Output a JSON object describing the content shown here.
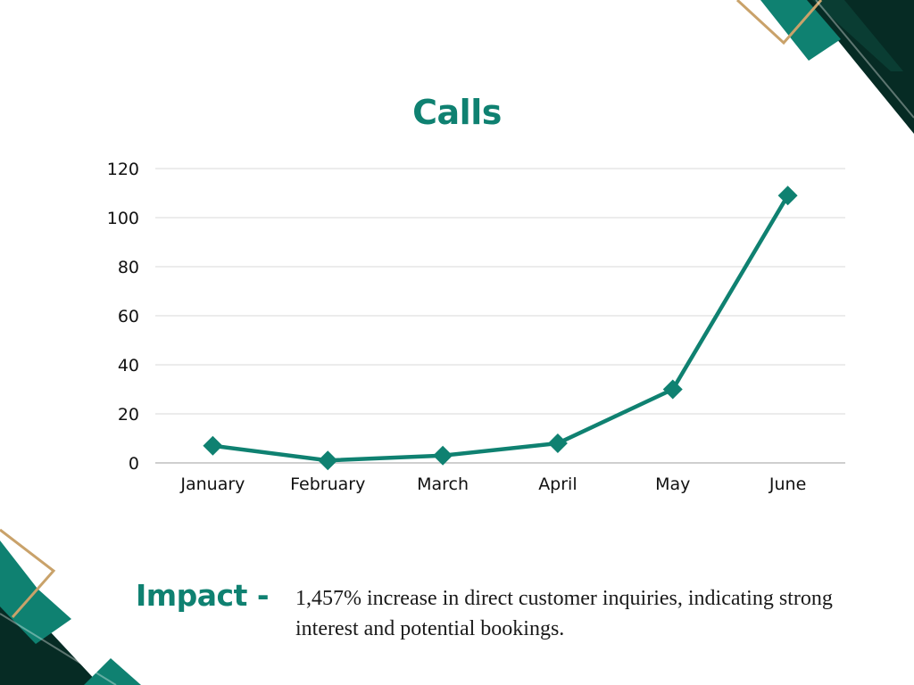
{
  "colors": {
    "accent": "#0f8171",
    "dark": "#062b24",
    "gold": "#c9a26a",
    "grid": "#d9d9d9",
    "axis": "#bfbfbf"
  },
  "chart_data": {
    "type": "line",
    "title": "Calls",
    "xlabel": "",
    "ylabel": "",
    "categories": [
      "January",
      "February",
      "March",
      "April",
      "May",
      "June"
    ],
    "series": [
      {
        "values": [
          7,
          1,
          3,
          8,
          30,
          109
        ]
      }
    ],
    "ylim": [
      0,
      120
    ],
    "yticks": [
      0,
      20,
      40,
      60,
      80,
      100,
      120
    ],
    "marker": "diamond",
    "grid": true,
    "legend": "none"
  },
  "impact": {
    "label": "Impact -",
    "text": "1,457% increase in direct customer inquiries, indicating strong interest and potential bookings."
  }
}
